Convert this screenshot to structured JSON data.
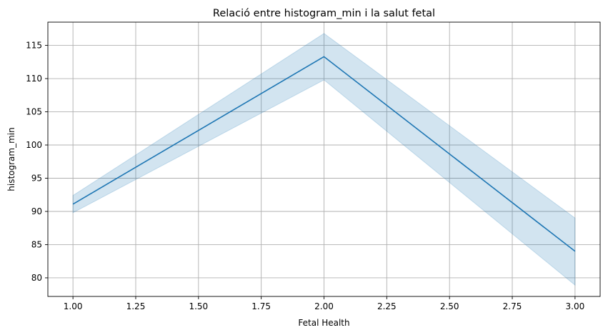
{
  "chart_data": {
    "type": "line",
    "title": "Relació entre histogram_min i la salut fetal",
    "xlabel": "Fetal Health",
    "ylabel": "histogram_min",
    "xlim": [
      0.9,
      3.1
    ],
    "ylim": [
      77.2,
      118.5
    ],
    "xticks": [
      "1.00",
      "1.25",
      "1.50",
      "1.75",
      "2.00",
      "2.25",
      "2.50",
      "2.75",
      "3.00"
    ],
    "yticks": [
      "80",
      "85",
      "90",
      "95",
      "100",
      "105",
      "110",
      "115"
    ],
    "grid": true,
    "series": [
      {
        "x": [
          1.0,
          2.0,
          3.0
        ],
        "values": [
          91.1,
          113.3,
          84.0
        ],
        "ci_lower": [
          89.8,
          109.8,
          78.9
        ],
        "ci_upper": [
          92.4,
          116.8,
          89.0
        ],
        "color": "#1f77b4",
        "band_color": "#1f77b4"
      }
    ]
  }
}
